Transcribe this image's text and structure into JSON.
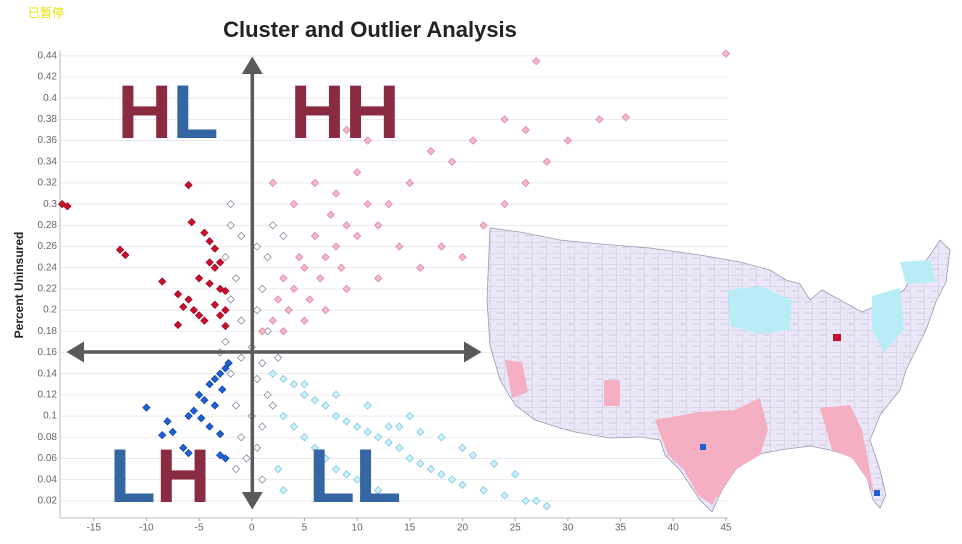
{
  "status": "已暂停",
  "chart_data": {
    "type": "scatter",
    "title": "Cluster and Outlier Analysis",
    "y_label": "Percent Uninsured",
    "xlim": [
      -18.2,
      45.2
    ],
    "ylim": [
      0,
      0.445
    ],
    "xticks": [
      -15,
      -10,
      -5,
      0,
      5,
      10,
      15,
      20,
      25,
      30,
      35,
      40,
      45
    ],
    "yticks": [
      0.02,
      0.04,
      0.06,
      0.08,
      0.1,
      0.12,
      0.14,
      0.16,
      0.18,
      0.2,
      0.22,
      0.24,
      0.26,
      0.28,
      0.3,
      0.32,
      0.34,
      0.36,
      0.38,
      0.4,
      0.42,
      0.44
    ],
    "grid": true,
    "quadrant_labels": [
      {
        "letters": [
          "H",
          "L"
        ],
        "colors": [
          "#8a2b42",
          "#3466a3"
        ]
      },
      {
        "letters": [
          "H",
          "H"
        ],
        "colors": [
          "#8a2b42",
          "#8a2b42"
        ]
      },
      {
        "letters": [
          "L",
          "H"
        ],
        "colors": [
          "#3466a3",
          "#8a2b42"
        ]
      },
      {
        "letters": [
          "L",
          "L"
        ],
        "colors": [
          "#3466a3",
          "#3466a3"
        ]
      }
    ],
    "series": [
      {
        "color": "#ffffff",
        "edge": "#8a8aa2",
        "x": [
          -2,
          -1,
          0.5,
          1.5,
          -2.5,
          -1.5,
          1,
          -2,
          0.5,
          -1,
          1.5,
          -2.5,
          0,
          -1,
          1,
          -2,
          0.5,
          1.5,
          -1.5,
          0,
          1,
          -1,
          0.5,
          -0.5,
          2,
          -3,
          2.5,
          -1.5,
          1,
          2,
          -2,
          3
        ],
        "values": [
          0.28,
          0.27,
          0.26,
          0.25,
          0.25,
          0.23,
          0.22,
          0.21,
          0.2,
          0.19,
          0.18,
          0.17,
          0.165,
          0.155,
          0.15,
          0.14,
          0.135,
          0.12,
          0.11,
          0.1,
          0.09,
          0.08,
          0.07,
          0.06,
          0.11,
          0.16,
          0.155,
          0.05,
          0.04,
          0.28,
          0.3,
          0.27
        ]
      },
      {
        "color": "#f5b8c8",
        "edge": "#d88aa0",
        "x": [
          1,
          2,
          2.5,
          3,
          3.5,
          4,
          4.5,
          5,
          5.5,
          6,
          6.5,
          7,
          7.5,
          8,
          8.5,
          9,
          10,
          11,
          12,
          3,
          5,
          7,
          9,
          4,
          6,
          8,
          10,
          13,
          15,
          17,
          19,
          21,
          24,
          26,
          20,
          22,
          24,
          26,
          28,
          30,
          33,
          35.5,
          16,
          18,
          12,
          14,
          9,
          11,
          2,
          27,
          45
        ],
        "values": [
          0.18,
          0.19,
          0.21,
          0.23,
          0.2,
          0.22,
          0.25,
          0.24,
          0.21,
          0.27,
          0.23,
          0.25,
          0.29,
          0.26,
          0.24,
          0.28,
          0.27,
          0.3,
          0.28,
          0.18,
          0.19,
          0.2,
          0.22,
          0.3,
          0.32,
          0.31,
          0.33,
          0.3,
          0.32,
          0.35,
          0.34,
          0.36,
          0.38,
          0.37,
          0.25,
          0.28,
          0.3,
          0.32,
          0.34,
          0.36,
          0.38,
          0.382,
          0.24,
          0.26,
          0.23,
          0.26,
          0.37,
          0.36,
          0.32,
          0.435,
          0.442
        ]
      },
      {
        "color": "#c8102e",
        "edge": "#a00d25",
        "x": [
          -18,
          -17.5,
          -12.5,
          -12,
          -8.5,
          -7,
          -6.5,
          -6,
          -5.5,
          -5,
          -4.5,
          -6,
          -5.7,
          -4.5,
          -4,
          -3.5,
          -3,
          -4,
          -3.5,
          -5,
          -4,
          -3,
          -2.5,
          -3.5,
          -2.5,
          -3,
          -2.5,
          -7
        ],
        "values": [
          0.3,
          0.298,
          0.257,
          0.252,
          0.227,
          0.215,
          0.203,
          0.21,
          0.2,
          0.195,
          0.19,
          0.318,
          0.283,
          0.273,
          0.265,
          0.258,
          0.245,
          0.245,
          0.24,
          0.23,
          0.225,
          0.22,
          0.218,
          0.205,
          0.2,
          0.195,
          0.185,
          0.186
        ]
      },
      {
        "color": "#1f5fd6",
        "edge": "#164aa8",
        "x": [
          -10,
          -8,
          -7.5,
          -8.5,
          -6,
          -6.5,
          -3,
          -2.5,
          -6,
          -5.5,
          -5,
          -4.5,
          -4,
          -3.5,
          -3,
          -2.5,
          -4.8,
          -3.5,
          -2.8,
          -4,
          -3,
          -2.2
        ],
        "values": [
          0.108,
          0.095,
          0.085,
          0.082,
          0.065,
          0.07,
          0.063,
          0.06,
          0.1,
          0.105,
          0.12,
          0.115,
          0.13,
          0.135,
          0.14,
          0.145,
          0.098,
          0.11,
          0.125,
          0.09,
          0.083,
          0.15
        ]
      },
      {
        "color": "#cdf0fb",
        "edge": "#7ec6df",
        "x": [
          2,
          3,
          4,
          5,
          6,
          7,
          8,
          9,
          10,
          11,
          12,
          13,
          14,
          15,
          16,
          17,
          18,
          19,
          20,
          22,
          24,
          26,
          28,
          3,
          4,
          5,
          6,
          7,
          8,
          9,
          10,
          11,
          12,
          5,
          8,
          11,
          14,
          16,
          18,
          20,
          21,
          23,
          25,
          27,
          2.5,
          3,
          13,
          15
        ],
        "values": [
          0.14,
          0.135,
          0.13,
          0.12,
          0.115,
          0.11,
          0.1,
          0.095,
          0.09,
          0.085,
          0.08,
          0.075,
          0.07,
          0.06,
          0.055,
          0.05,
          0.045,
          0.04,
          0.035,
          0.03,
          0.025,
          0.02,
          0.015,
          0.1,
          0.09,
          0.08,
          0.07,
          0.06,
          0.05,
          0.045,
          0.04,
          0.035,
          0.03,
          0.13,
          0.12,
          0.11,
          0.09,
          0.085,
          0.08,
          0.07,
          0.063,
          0.055,
          0.045,
          0.02,
          0.05,
          0.03,
          0.09,
          0.1
        ]
      }
    ]
  }
}
